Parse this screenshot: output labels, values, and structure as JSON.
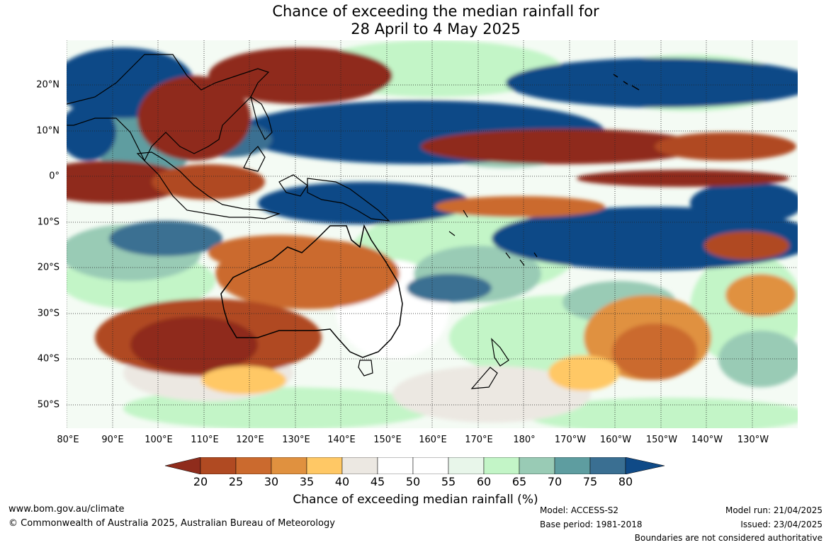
{
  "title": {
    "line1": "Chance of exceeding the median rainfall for",
    "line2": "28 April to 4 May 2025"
  },
  "map": {
    "region": "Indo-Pacific / Australia",
    "lon_labels": [
      "80°E",
      "90°E",
      "100°E",
      "110°E",
      "120°E",
      "130°E",
      "140°E",
      "150°E",
      "160°E",
      "170°E",
      "180°",
      "170°W",
      "160°W",
      "150°W",
      "140°W",
      "130°W"
    ],
    "lat_labels": [
      "20°N",
      "10°N",
      "0°",
      "10°S",
      "20°S",
      "30°S",
      "40°S",
      "50°S"
    ],
    "lon_range": [
      "80°E",
      "120°W"
    ],
    "lat_range": [
      "55°S",
      "30°N"
    ],
    "grid": true
  },
  "colorbar": {
    "label": "Chance of exceeding median rainfall (%)",
    "ticks": [
      "20",
      "25",
      "30",
      "35",
      "40",
      "45",
      "50",
      "55",
      "60",
      "65",
      "70",
      "75",
      "80"
    ],
    "colors": [
      "#8f2c1c",
      "#b04a22",
      "#cb6a2e",
      "#e0913f",
      "#ffc865",
      "#ece8e2",
      "#ffffff",
      "#ffffff",
      "#e8f6ea",
      "#c3f5c7",
      "#99cbb5",
      "#5e9da0",
      "#3a6f92",
      "#0f4a87"
    ]
  },
  "footer": {
    "url": "www.bom.gov.au/climate",
    "copyright": "© Commonwealth of Australia 2025, Australian Bureau of Meteorology",
    "model": "Model: ACCESS-S2",
    "base_period": "Base period: 1981-2018",
    "model_run": "Model run: 21/04/2025",
    "issued": "Issued: 23/04/2025",
    "disclaimer": "Boundaries are not considered authoritative"
  }
}
